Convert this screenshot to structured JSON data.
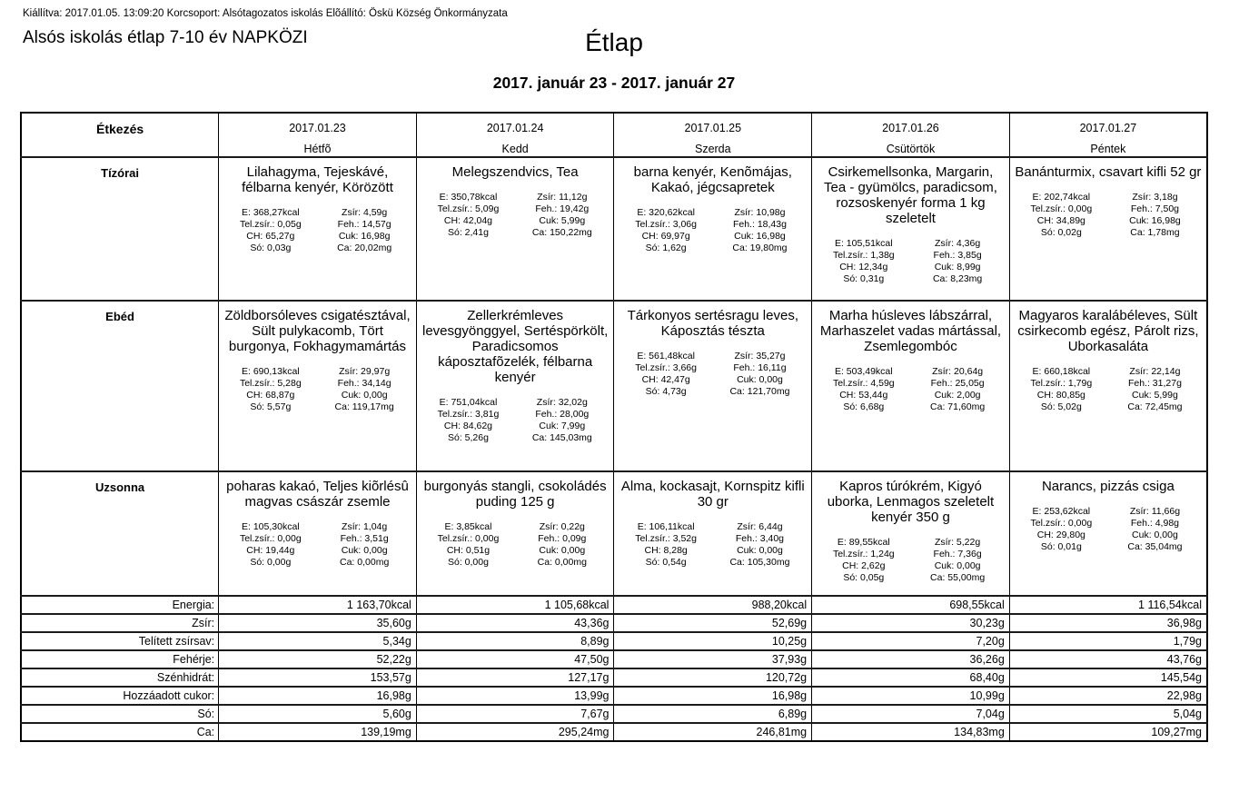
{
  "page": {
    "meta_line": "Kiállítva: 2017.01.05. 13:09:20 Korcsoport: Alsótagozatos iskolás Elõállító: Öskü Község Önkormányzata",
    "doc_title": "Alsós iskolás étlap 7-10 év NAPKÖZI",
    "main_title": "Étlap",
    "date_range": "2017. január 23 - 2017. január 27"
  },
  "table": {
    "corner_header": "Étkezés",
    "days": [
      {
        "date": "2017.01.23",
        "day": "Hétfõ"
      },
      {
        "date": "2017.01.24",
        "day": "Kedd"
      },
      {
        "date": "2017.01.25",
        "day": "Szerda"
      },
      {
        "date": "2017.01.26",
        "day": "Csütörtök"
      },
      {
        "date": "2017.01.27",
        "day": "Péntek"
      }
    ],
    "meal_rows": [
      {
        "label": "Tízórai",
        "cells": [
          {
            "name": "Lilahagyma, Tejeskávé, félbarna kenyér, Körözött",
            "left": [
              "E: 368,27kcal",
              "Tel.zsír.: 0,05g",
              "CH: 65,27g",
              "Só: 0,03g"
            ],
            "right": [
              "Zsír: 4,59g",
              "Feh.: 14,57g",
              "Cuk: 16,98g",
              "Ca: 20,02mg"
            ]
          },
          {
            "name": "Melegszendvics, Tea",
            "left": [
              "E: 350,78kcal",
              "Tel.zsír.: 5,09g",
              "CH: 42,04g",
              "Só: 2,41g"
            ],
            "right": [
              "Zsír: 11,12g",
              "Feh.: 19,42g",
              "Cuk: 5,99g",
              "Ca: 150,22mg"
            ]
          },
          {
            "name": "barna kenyér, Kenõmájas, Kakaó, jégcsapretek",
            "left": [
              "E: 320,62kcal",
              "Tel.zsír.: 3,06g",
              "CH: 69,97g",
              "Só: 1,62g"
            ],
            "right": [
              "Zsír: 10,98g",
              "Feh.: 18,43g",
              "Cuk: 16,98g",
              "Ca: 19,80mg"
            ]
          },
          {
            "name": "Csirkemellsonka, Margarin, Tea - gyümölcs, paradicsom, rozsoskenyér forma 1 kg szeletelt",
            "left": [
              "E: 105,51kcal",
              "Tel.zsír.: 1,38g",
              "CH: 12,34g",
              "Só: 0,31g"
            ],
            "right": [
              "Zsír: 4,36g",
              "Feh.: 3,85g",
              "Cuk: 8,99g",
              "Ca: 8,23mg"
            ]
          },
          {
            "name": "Banánturmix, csavart kifli 52 gr",
            "left": [
              "E: 202,74kcal",
              "Tel.zsír.: 0,00g",
              "CH: 34,89g",
              "Só: 0,02g"
            ],
            "right": [
              "Zsír: 3,18g",
              "Feh.: 7,50g",
              "Cuk: 16,98g",
              "Ca: 1,78mg"
            ]
          }
        ]
      },
      {
        "label": "Ebéd",
        "cells": [
          {
            "name": "Zöldborsóleves csigatésztával, Sült pulykacomb, Tört burgonya, Fokhagymamártás",
            "left": [
              "E: 690,13kcal",
              "Tel.zsír.: 5,28g",
              "CH: 68,87g",
              "Só: 5,57g"
            ],
            "right": [
              "Zsír: 29,97g",
              "Feh.: 34,14g",
              "Cuk: 0,00g",
              "Ca: 119,17mg"
            ]
          },
          {
            "name": "Zellerkrémleves levesgyönggyel, Sertéspörkölt, Paradicsomos káposztafõzelék, félbarna kenyér",
            "left": [
              "E: 751,04kcal",
              "Tel.zsír.: 3,81g",
              "CH: 84,62g",
              "Só: 5,26g"
            ],
            "right": [
              "Zsír: 32,02g",
              "Feh.: 28,00g",
              "Cuk: 7,99g",
              "Ca: 145,03mg"
            ]
          },
          {
            "name": "Tárkonyos sertésragu leves, Káposztás tészta",
            "left": [
              "E: 561,48kcal",
              "Tel.zsír.: 3,66g",
              "CH: 42,47g",
              "Só: 4,73g"
            ],
            "right": [
              "Zsír: 35,27g",
              "Feh.: 16,11g",
              "Cuk: 0,00g",
              "Ca: 121,70mg"
            ]
          },
          {
            "name": "Marha húsleves lábszárral, Marhaszelet vadas mártással, Zsemlegombóc",
            "left": [
              "E: 503,49kcal",
              "Tel.zsír.: 4,59g",
              "CH: 53,44g",
              "Só: 6,68g"
            ],
            "right": [
              "Zsír: 20,64g",
              "Feh.: 25,05g",
              "Cuk: 2,00g",
              "Ca: 71,60mg"
            ]
          },
          {
            "name": "Magyaros karalábéleves, Sült csirkecomb egész, Párolt rizs, Uborkasaláta",
            "left": [
              "E: 660,18kcal",
              "Tel.zsír.: 1,79g",
              "CH: 80,85g",
              "Só: 5,02g"
            ],
            "right": [
              "Zsír: 22,14g",
              "Feh.: 31,27g",
              "Cuk: 5,99g",
              "Ca: 72,45mg"
            ]
          }
        ]
      },
      {
        "label": "Uzsonna",
        "cells": [
          {
            "name": "poharas kakaó, Teljes kiõrlésû magvas császár zsemle",
            "left": [
              "E: 105,30kcal",
              "Tel.zsír.: 0,00g",
              "CH: 19,44g",
              "Só: 0,00g"
            ],
            "right": [
              "Zsír: 1,04g",
              "Feh.: 3,51g",
              "Cuk: 0,00g",
              "Ca: 0,00mg"
            ]
          },
          {
            "name": "burgonyás stangli, csokoládés puding 125  g",
            "left": [
              "E: 3,85kcal",
              "Tel.zsír.: 0,00g",
              "CH: 0,51g",
              "Só: 0,00g"
            ],
            "right": [
              "Zsír: 0,22g",
              "Feh.: 0,09g",
              "Cuk: 0,00g",
              "Ca: 0,00mg"
            ]
          },
          {
            "name": "Alma, kockasajt, Kornspitz kifli 30 gr",
            "left": [
              "E: 106,11kcal",
              "Tel.zsír.: 3,52g",
              "CH: 8,28g",
              "Só: 0,54g"
            ],
            "right": [
              "Zsír: 6,44g",
              "Feh.: 3,40g",
              "Cuk: 0,00g",
              "Ca: 105,30mg"
            ]
          },
          {
            "name": "Kapros túrókrém, Kigyó uborka, Lenmagos szeletelt kenyér 350 g",
            "left": [
              "E: 89,55kcal",
              "Tel.zsír.: 1,24g",
              "CH: 2,62g",
              "Só: 0,05g"
            ],
            "right": [
              "Zsír: 5,22g",
              "Feh.: 7,36g",
              "Cuk: 0,00g",
              "Ca: 55,00mg"
            ]
          },
          {
            "name": "Narancs, pizzás csiga",
            "left": [
              "E: 253,62kcal",
              "Tel.zsír.: 0,00g",
              "CH: 29,80g",
              "Só: 0,01g"
            ],
            "right": [
              "Zsír: 11,66g",
              "Feh.: 4,98g",
              "Cuk: 0,00g",
              "Ca: 35,04mg"
            ]
          }
        ]
      }
    ],
    "summary_rows": [
      {
        "label": "Energia:",
        "values": [
          "1 163,70kcal",
          "1 105,68kcal",
          "988,20kcal",
          "698,55kcal",
          "1 116,54kcal"
        ]
      },
      {
        "label": "Zsír:",
        "values": [
          "35,60g",
          "43,36g",
          "52,69g",
          "30,23g",
          "36,98g"
        ]
      },
      {
        "label": "Telített zsírsav:",
        "values": [
          "5,34g",
          "8,89g",
          "10,25g",
          "7,20g",
          "1,79g"
        ]
      },
      {
        "label": "Fehérje:",
        "values": [
          "52,22g",
          "47,50g",
          "37,93g",
          "36,26g",
          "43,76g"
        ]
      },
      {
        "label": "Szénhidrát:",
        "values": [
          "153,57g",
          "127,17g",
          "120,72g",
          "68,40g",
          "145,54g"
        ]
      },
      {
        "label": "Hozzáadott cukor:",
        "values": [
          "16,98g",
          "13,99g",
          "16,98g",
          "10,99g",
          "22,98g"
        ]
      },
      {
        "label": "Só:",
        "values": [
          "5,60g",
          "7,67g",
          "6,89g",
          "7,04g",
          "5,04g"
        ]
      },
      {
        "label": "Ca:",
        "values": [
          "139,19mg",
          "295,24mg",
          "246,81mg",
          "134,83mg",
          "109,27mg"
        ]
      }
    ]
  }
}
